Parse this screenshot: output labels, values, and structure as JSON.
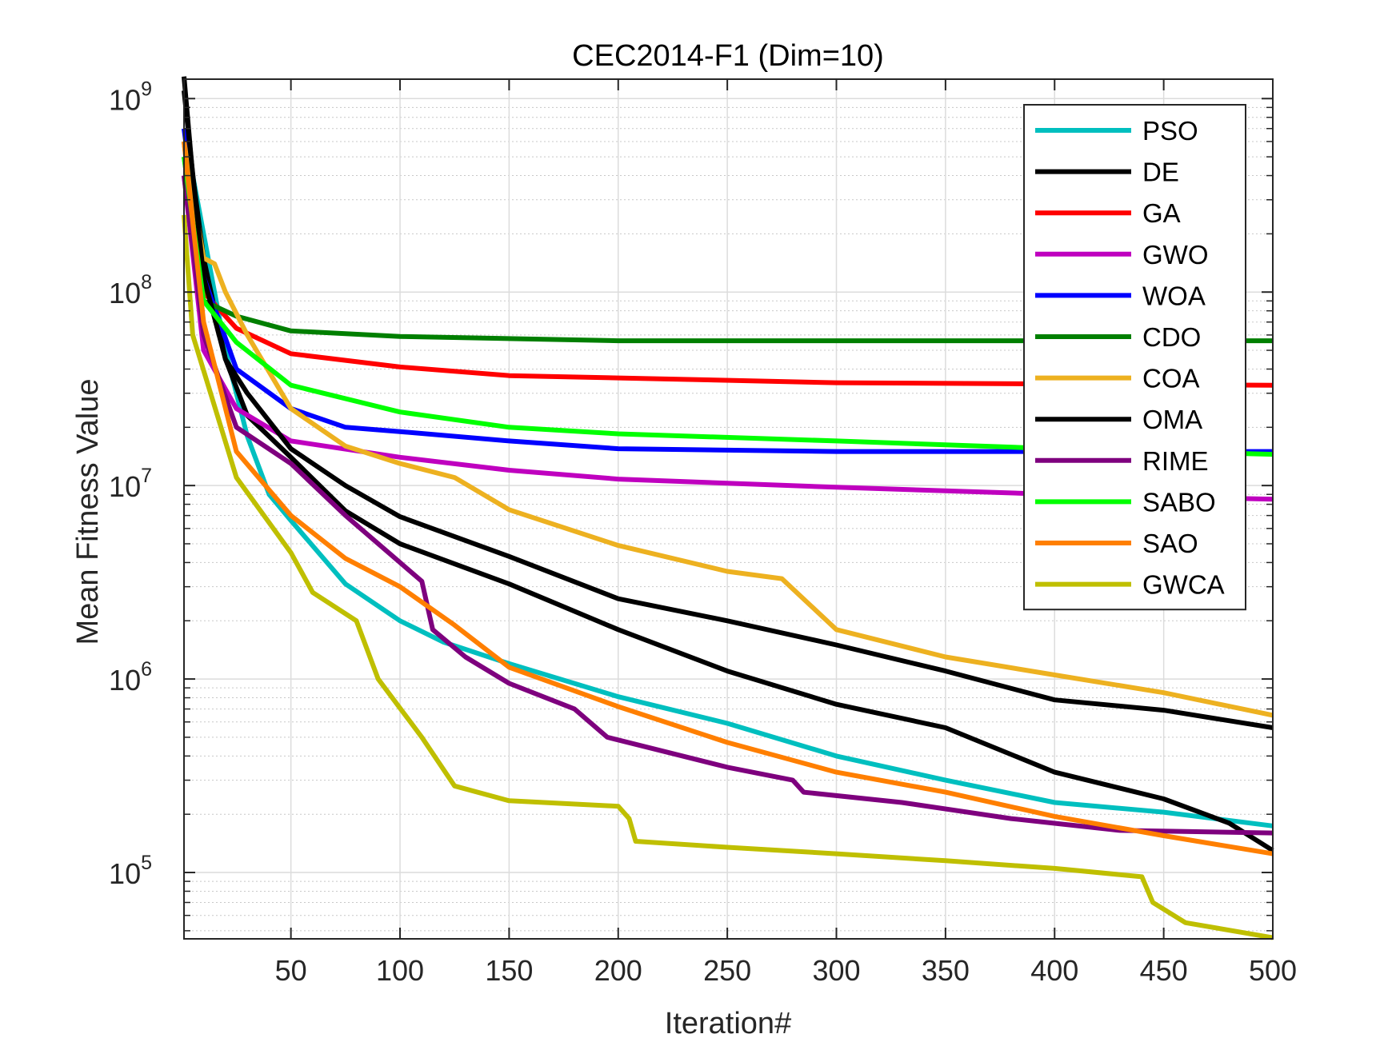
{
  "chart_data": {
    "type": "line",
    "title": "CEC2014-F1 (Dim=10)",
    "xlabel": "Iteration#",
    "ylabel": "Mean Fitness Value",
    "xlim": [
      1,
      500
    ],
    "ylim": [
      45400,
      1260000000
    ],
    "yscale": "log",
    "grid": true,
    "legend_placement": "top-right",
    "xticks": [
      50,
      100,
      150,
      200,
      250,
      300,
      350,
      400,
      450,
      500
    ],
    "yticks": [
      {
        "base": "10",
        "exp": "5",
        "value": 100000
      },
      {
        "base": "10",
        "exp": "6",
        "value": 1000000
      },
      {
        "base": "10",
        "exp": "7",
        "value": 10000000
      },
      {
        "base": "10",
        "exp": "8",
        "value": 100000000
      },
      {
        "base": "10",
        "exp": "9",
        "value": 1000000000
      }
    ],
    "series": [
      {
        "name": "PSO",
        "color": "#00bfbf",
        "points": [
          [
            1,
            700000000.0
          ],
          [
            10,
            200000000.0
          ],
          [
            20,
            50000000.0
          ],
          [
            30,
            18000000.0
          ],
          [
            40,
            9000000.0
          ],
          [
            50,
            6600000.0
          ],
          [
            75,
            3100000.0
          ],
          [
            100,
            2000000.0
          ],
          [
            120,
            1550000.0
          ],
          [
            150,
            1200000.0
          ],
          [
            200,
            810000.0
          ],
          [
            250,
            590000.0
          ],
          [
            300,
            400000.0
          ],
          [
            350,
            300000.0
          ],
          [
            400,
            230000.0
          ],
          [
            450,
            205000.0
          ],
          [
            500,
            174000.0
          ]
        ]
      },
      {
        "name": "DE",
        "color": "#000000",
        "points": [
          [
            1,
            1300000000.0
          ],
          [
            5,
            400000000.0
          ],
          [
            10,
            150000000.0
          ],
          [
            20,
            45000000.0
          ],
          [
            30,
            23000000.0
          ],
          [
            50,
            14000000.0
          ],
          [
            75,
            7400000.0
          ],
          [
            100,
            5000000.0
          ],
          [
            150,
            3100000.0
          ],
          [
            200,
            1800000.0
          ],
          [
            250,
            1100000.0
          ],
          [
            300,
            740000.0
          ],
          [
            350,
            560000.0
          ],
          [
            400,
            330000.0
          ],
          [
            450,
            240000.0
          ],
          [
            480,
            180000.0
          ],
          [
            500,
            130000.0
          ]
        ]
      },
      {
        "name": "GA",
        "color": "#ff0000",
        "points": [
          [
            1,
            500000000.0
          ],
          [
            10,
            100000000.0
          ],
          [
            25,
            65000000.0
          ],
          [
            50,
            48000000.0
          ],
          [
            100,
            41000000.0
          ],
          [
            150,
            37000000.0
          ],
          [
            200,
            36000000.0
          ],
          [
            300,
            34000000.0
          ],
          [
            500,
            33000000.0
          ]
        ]
      },
      {
        "name": "GWO",
        "color": "#bf00bf",
        "points": [
          [
            1,
            400000000.0
          ],
          [
            10,
            50000000.0
          ],
          [
            25,
            25000000.0
          ],
          [
            50,
            17000000.0
          ],
          [
            100,
            14000000.0
          ],
          [
            150,
            12000000.0
          ],
          [
            200,
            10800000.0
          ],
          [
            300,
            9800000.0
          ],
          [
            400,
            9000000.0
          ],
          [
            500,
            8500000.0
          ]
        ]
      },
      {
        "name": "WOA",
        "color": "#0000ff",
        "points": [
          [
            1,
            700000000.0
          ],
          [
            10,
            120000000.0
          ],
          [
            25,
            40000000.0
          ],
          [
            50,
            25000000.0
          ],
          [
            75,
            20000000.0
          ],
          [
            100,
            19000000.0
          ],
          [
            150,
            17000000.0
          ],
          [
            200,
            15500000.0
          ],
          [
            300,
            15000000.0
          ],
          [
            500,
            15000000.0
          ]
        ]
      },
      {
        "name": "CDO",
        "color": "#007f00",
        "points": [
          [
            1,
            600000000.0
          ],
          [
            10,
            90000000.0
          ],
          [
            25,
            75000000.0
          ],
          [
            50,
            63000000.0
          ],
          [
            100,
            59000000.0
          ],
          [
            200,
            56000000.0
          ],
          [
            500,
            56000000.0
          ]
        ]
      },
      {
        "name": "COA",
        "color": "#edb120",
        "points": [
          [
            1,
            600000000.0
          ],
          [
            10,
            150000000.0
          ],
          [
            15,
            140000000.0
          ],
          [
            20,
            100000000.0
          ],
          [
            30,
            60000000.0
          ],
          [
            50,
            25000000.0
          ],
          [
            75,
            16000000.0
          ],
          [
            100,
            13000000.0
          ],
          [
            125,
            11000000.0
          ],
          [
            150,
            7500000.0
          ],
          [
            200,
            4900000.0
          ],
          [
            250,
            3600000.0
          ],
          [
            275,
            3300000.0
          ],
          [
            300,
            1800000.0
          ],
          [
            350,
            1300000.0
          ],
          [
            400,
            1050000.0
          ],
          [
            450,
            850000.0
          ],
          [
            500,
            650000.0
          ]
        ]
      },
      {
        "name": "OMA",
        "color": "#000000",
        "points": [
          [
            1,
            1100000000.0
          ],
          [
            10,
            120000000.0
          ],
          [
            20,
            45000000.0
          ],
          [
            30,
            30000000.0
          ],
          [
            50,
            15500000.0
          ],
          [
            75,
            10000000.0
          ],
          [
            100,
            6900000.0
          ],
          [
            150,
            4300000.0
          ],
          [
            200,
            2600000.0
          ],
          [
            250,
            2000000.0
          ],
          [
            300,
            1500000.0
          ],
          [
            350,
            1100000.0
          ],
          [
            400,
            780000.0
          ],
          [
            450,
            690000.0
          ],
          [
            500,
            560000.0
          ]
        ]
      },
      {
        "name": "RIME",
        "color": "#7e007e",
        "points": [
          [
            1,
            400000000.0
          ],
          [
            10,
            60000000.0
          ],
          [
            25,
            20000000.0
          ],
          [
            50,
            13000000.0
          ],
          [
            75,
            7000000.0
          ],
          [
            100,
            4000000.0
          ],
          [
            110,
            3200000.0
          ],
          [
            115,
            1800000.0
          ],
          [
            130,
            1300000.0
          ],
          [
            150,
            950000.0
          ],
          [
            180,
            700000.0
          ],
          [
            195,
            500000.0
          ],
          [
            250,
            350000.0
          ],
          [
            280,
            300000.0
          ],
          [
            285,
            260000.0
          ],
          [
            330,
            230000.0
          ],
          [
            380,
            190000.0
          ],
          [
            430,
            165000.0
          ],
          [
            500,
            160000.0
          ]
        ]
      },
      {
        "name": "SABO",
        "color": "#00ff00",
        "points": [
          [
            1,
            500000000.0
          ],
          [
            10,
            90000000.0
          ],
          [
            25,
            55000000.0
          ],
          [
            50,
            33000000.0
          ],
          [
            100,
            24000000.0
          ],
          [
            150,
            20000000.0
          ],
          [
            200,
            18500000.0
          ],
          [
            300,
            17000000.0
          ],
          [
            400,
            15500000.0
          ],
          [
            500,
            14500000.0
          ]
        ]
      },
      {
        "name": "SAO",
        "color": "#ff7f00",
        "points": [
          [
            1,
            600000000.0
          ],
          [
            10,
            70000000.0
          ],
          [
            25,
            15000000.0
          ],
          [
            50,
            7000000.0
          ],
          [
            75,
            4200000.0
          ],
          [
            100,
            3000000.0
          ],
          [
            125,
            1900000.0
          ],
          [
            150,
            1150000.0
          ],
          [
            200,
            720000.0
          ],
          [
            250,
            470000.0
          ],
          [
            300,
            330000.0
          ],
          [
            350,
            260000.0
          ],
          [
            400,
            195000.0
          ],
          [
            450,
            155000.0
          ],
          [
            500,
            125000.0
          ]
        ]
      },
      {
        "name": "GWCA",
        "color": "#bfbf00",
        "points": [
          [
            1,
            250000000.0
          ],
          [
            5,
            60000000.0
          ],
          [
            25,
            11000000.0
          ],
          [
            50,
            4500000.0
          ],
          [
            60,
            2800000.0
          ],
          [
            80,
            2000000.0
          ],
          [
            90,
            1000000.0
          ],
          [
            110,
            500000.0
          ],
          [
            125,
            280000.0
          ],
          [
            150,
            235000.0
          ],
          [
            200,
            220000.0
          ],
          [
            205,
            190000.0
          ],
          [
            208,
            145000.0
          ],
          [
            250,
            135000.0
          ],
          [
            300,
            125000.0
          ],
          [
            350,
            115000.0
          ],
          [
            400,
            105000.0
          ],
          [
            440,
            95000.0
          ],
          [
            445,
            70000.0
          ],
          [
            460,
            55000.0
          ],
          [
            500,
            46000.0
          ]
        ]
      }
    ]
  }
}
